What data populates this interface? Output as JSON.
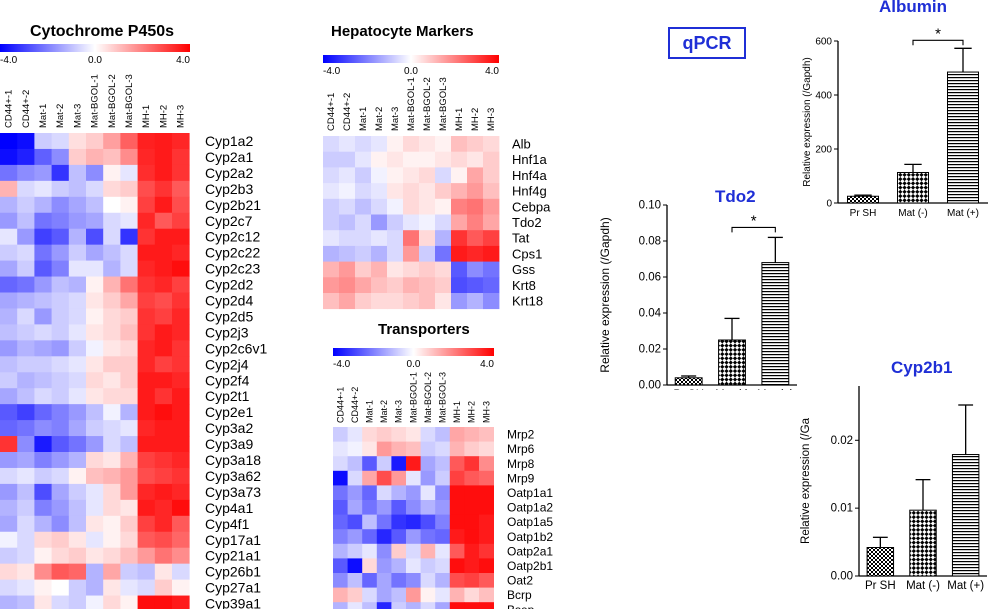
{
  "heatmap_colors": {
    "low": "#0000ff",
    "mid": "#ffffff",
    "high": "#ff0000"
  },
  "qpcr_label": "qPCR",
  "chart_data": [
    {
      "type": "heatmap",
      "title": "Cytochrome P450s",
      "scale": {
        "min": "-4.0",
        "mid": "0.0",
        "max": "4.0"
      },
      "columns": [
        "CD44+-1",
        "CD44+-2",
        "Mat-1",
        "Mat-2",
        "Mat-3",
        "Mat-BGOL-1",
        "Mat-BGOL-2",
        "Mat-BGOL-3",
        "MH-1",
        "MH-2",
        "MH-3"
      ],
      "rows": [
        "Cyp1a2",
        "Cyp2a1",
        "Cyp2a2",
        "Cyp2b3",
        "Cyp2b21",
        "Cyp2c7",
        "Cyp2c12",
        "Cyp2c22",
        "Cyp2c23",
        "Cyp2d2",
        "Cyp2d4",
        "Cyp2d5",
        "Cyp2j3",
        "Cyp2c6v1",
        "Cyp2j4",
        "Cyp2f4",
        "Cyp2t1",
        "Cyp2e1",
        "Cyp3a2",
        "Cyp3a9",
        "Cyp3a18",
        "Cyp3a62",
        "Cyp3a73",
        "Cyp4a1",
        "Cyp4f1",
        "Cyp17a1",
        "Cyp21a1",
        "Cyp26b1",
        "Cyp27a1",
        "Cyp39a1"
      ],
      "values": [
        [
          -4,
          -3.8,
          -0.8,
          -0.6,
          0.5,
          0.8,
          1.5,
          2.5,
          3.5,
          3.6,
          3.4
        ],
        [
          -3.8,
          -3.5,
          -2.5,
          -1.8,
          0.8,
          1.2,
          1.0,
          1.8,
          3.4,
          3.6,
          3.2
        ],
        [
          -2.2,
          -1.8,
          -1.6,
          -3.2,
          -1.0,
          -1.8,
          0.2,
          -0.4,
          3.3,
          3.6,
          3.2
        ],
        [
          1.2,
          -0.6,
          -0.4,
          -0.8,
          -1.0,
          -0.6,
          0.6,
          0.8,
          2.8,
          3.2,
          2.6
        ],
        [
          -1.2,
          -0.8,
          -1.2,
          -1.8,
          -1.4,
          -1.0,
          0.0,
          0.2,
          3.0,
          3.6,
          2.8
        ],
        [
          -1.6,
          -1.0,
          -2.2,
          -2.0,
          -1.6,
          -1.4,
          -0.6,
          -0.4,
          3.4,
          2.6,
          3.0
        ],
        [
          -0.4,
          -1.6,
          -3.0,
          -2.6,
          -1.2,
          -2.8,
          -0.6,
          -3.2,
          3.2,
          3.6,
          3.6
        ],
        [
          -0.8,
          -0.6,
          -2.2,
          -1.6,
          -0.8,
          -1.4,
          -1.0,
          -0.6,
          3.6,
          3.6,
          3.4
        ],
        [
          -1.4,
          -0.8,
          -2.6,
          -2.0,
          -0.4,
          -0.4,
          -1.2,
          -0.6,
          3.4,
          3.6,
          3.8
        ],
        [
          -2.4,
          -2.2,
          -1.6,
          -1.0,
          -1.2,
          0.2,
          1.2,
          2.2,
          3.2,
          3.4,
          3.0
        ],
        [
          -1.4,
          -1.2,
          -1.0,
          -0.8,
          -0.6,
          0.4,
          0.8,
          1.4,
          3.0,
          2.8,
          3.2
        ],
        [
          -1.2,
          -0.6,
          -1.6,
          -0.8,
          -0.6,
          0.2,
          0.6,
          0.8,
          3.2,
          3.0,
          3.4
        ],
        [
          -1.0,
          -0.8,
          -0.6,
          -0.8,
          -0.4,
          0.4,
          0.6,
          1.0,
          3.2,
          3.6,
          3.4
        ],
        [
          -1.6,
          -1.2,
          -1.4,
          -1.6,
          -0.8,
          -0.2,
          0.4,
          0.6,
          3.4,
          3.6,
          3.2
        ],
        [
          -1.0,
          -0.8,
          -0.8,
          -0.6,
          -0.4,
          0.4,
          0.8,
          0.8,
          3.4,
          3.0,
          3.2
        ],
        [
          -0.8,
          -1.2,
          -1.0,
          -0.8,
          -0.6,
          0.6,
          0.4,
          0.8,
          3.6,
          3.6,
          3.4
        ],
        [
          -1.4,
          -1.0,
          -0.6,
          -0.8,
          -0.4,
          0.4,
          0.6,
          0.6,
          3.6,
          3.2,
          3.6
        ],
        [
          -2.6,
          -3.0,
          -2.4,
          -2.0,
          -1.6,
          -1.0,
          -0.2,
          -1.2,
          3.6,
          3.8,
          3.6
        ],
        [
          -2.4,
          -2.2,
          -1.8,
          -2.0,
          -1.4,
          -0.8,
          -0.6,
          -0.4,
          3.4,
          3.6,
          3.6
        ],
        [
          3.2,
          -1.8,
          -3.6,
          -2.6,
          -2.2,
          -1.6,
          -0.6,
          -1.0,
          3.6,
          3.6,
          3.6
        ],
        [
          -1.6,
          -1.4,
          -2.0,
          -1.6,
          -1.2,
          0.6,
          0.4,
          1.2,
          3.0,
          3.2,
          3.4
        ],
        [
          -0.6,
          -0.4,
          -0.8,
          -0.6,
          0.2,
          1.0,
          1.2,
          1.6,
          2.8,
          3.0,
          3.2
        ],
        [
          -1.6,
          -1.0,
          -2.8,
          -1.4,
          -0.8,
          -0.4,
          0.6,
          1.6,
          3.4,
          3.6,
          3.4
        ],
        [
          -1.2,
          -0.8,
          -2.0,
          -1.6,
          -1.0,
          -0.4,
          0.6,
          0.4,
          3.6,
          3.4,
          3.8
        ],
        [
          -1.4,
          -0.6,
          -1.2,
          -1.8,
          -1.0,
          0.4,
          0.2,
          0.8,
          3.0,
          3.4,
          2.6
        ],
        [
          -0.2,
          -0.6,
          0.6,
          0.8,
          0.4,
          -0.4,
          0.2,
          0.6,
          2.6,
          2.8,
          2.4
        ],
        [
          -0.8,
          -0.6,
          0.2,
          0.6,
          0.8,
          0.4,
          0.6,
          1.0,
          1.6,
          2.2,
          1.8
        ],
        [
          0.6,
          0.4,
          1.8,
          2.6,
          2.4,
          -1.2,
          1.4,
          -0.8,
          -1.0,
          0.4,
          -0.6
        ],
        [
          -0.6,
          -0.4,
          0.2,
          0.0,
          -0.8,
          -1.2,
          0.4,
          -0.4,
          -0.6,
          0.8,
          0.2
        ],
        [
          -1.2,
          -1.0,
          0.4,
          -0.6,
          -0.8,
          -0.2,
          0.6,
          0.2,
          3.8,
          3.8,
          3.6
        ]
      ]
    },
    {
      "type": "heatmap",
      "title": "Hepatocyte Markers",
      "scale": {
        "min": "-4.0",
        "mid": "0.0",
        "max": "4.0"
      },
      "columns": [
        "CD44+-1",
        "CD44+-2",
        "Mat-1",
        "Mat-2",
        "Mat-3",
        "Mat-BGOL-1",
        "Mat-BGOL-2",
        "Mat-BGOL-3",
        "MH-1",
        "MH-2",
        "MH-3"
      ],
      "rows": [
        "Alb",
        "Hnf1a",
        "Hnf4a",
        "Hnf4g",
        "Cebpa",
        "Tdo2",
        "Tat",
        "Cps1",
        "Gss",
        "Krt8",
        "Krt18"
      ],
      "values": [
        [
          -0.6,
          -0.4,
          -0.6,
          -0.4,
          0.2,
          0.6,
          0.4,
          0.2,
          1.0,
          0.8,
          0.6
        ],
        [
          -0.8,
          -0.8,
          -0.4,
          0.2,
          0.4,
          0.2,
          0.2,
          0.4,
          0.6,
          0.4,
          0.8
        ],
        [
          -0.6,
          -0.4,
          -0.8,
          -0.2,
          0.2,
          0.4,
          0.6,
          -0.6,
          0.2,
          1.4,
          0.8
        ],
        [
          -0.4,
          -0.2,
          -0.6,
          -0.4,
          0.4,
          0.6,
          0.4,
          0.8,
          1.2,
          1.6,
          1.0
        ],
        [
          -0.8,
          -0.6,
          -1.0,
          -0.6,
          -0.2,
          0.6,
          0.4,
          0.2,
          2.0,
          2.2,
          1.6
        ],
        [
          -0.8,
          -1.0,
          -0.6,
          -1.6,
          -0.8,
          -0.4,
          -0.2,
          -0.6,
          1.4,
          2.0,
          1.4
        ],
        [
          -0.4,
          -0.6,
          -0.6,
          -0.4,
          -0.6,
          2.2,
          0.6,
          -1.2,
          3.2,
          2.6,
          3.0
        ],
        [
          -1.2,
          -1.0,
          -0.8,
          -1.2,
          -0.6,
          1.6,
          -0.8,
          -2.2,
          3.6,
          3.4,
          3.6
        ],
        [
          1.2,
          1.6,
          0.8,
          1.2,
          0.4,
          0.6,
          0.8,
          0.6,
          -2.6,
          -1.8,
          -2.2
        ],
        [
          1.6,
          1.8,
          1.4,
          1.0,
          0.8,
          1.2,
          1.0,
          0.8,
          -2.8,
          -2.6,
          -2.4
        ],
        [
          1.0,
          1.4,
          0.8,
          0.6,
          0.6,
          0.8,
          1.0,
          0.4,
          -1.6,
          -1.2,
          -1.8
        ]
      ]
    },
    {
      "type": "heatmap",
      "title": "Transporters",
      "scale": {
        "min": "-4.0",
        "mid": "0.0",
        "max": "4.0"
      },
      "columns": [
        "CD44+-1",
        "CD44+-2",
        "Mat-1",
        "Mat-2",
        "Mat-3",
        "Mat-BGOL-1",
        "Mat-BGOL-2",
        "Mat-BGOL-3",
        "MH-1",
        "MH-2",
        "MH-3"
      ],
      "rows": [
        "Mrp2",
        "Mrp6",
        "Mrp8",
        "Mrp9",
        "Oatp1a1",
        "Oatp1a2",
        "Oatp1a5",
        "Oatp1b2",
        "Oatp2a1",
        "Oatp2b1",
        "Oat2",
        "Bcrp",
        "Bsep"
      ],
      "values": [
        [
          -0.8,
          -0.4,
          0.6,
          0.8,
          0.6,
          0.4,
          -0.6,
          -1.0,
          1.4,
          1.2,
          1.0
        ],
        [
          -0.4,
          -0.2,
          0.4,
          1.6,
          1.2,
          1.0,
          -0.8,
          -0.6,
          1.2,
          0.8,
          0.6
        ],
        [
          -0.6,
          -1.0,
          -2.6,
          -0.8,
          -3.6,
          3.6,
          -1.4,
          -1.0,
          2.6,
          3.2,
          1.8
        ],
        [
          -3.8,
          -0.6,
          1.4,
          2.8,
          1.6,
          -0.4,
          -1.6,
          -0.8,
          3.0,
          2.6,
          2.4
        ],
        [
          -2.2,
          -1.6,
          -2.4,
          -0.6,
          -1.2,
          -1.6,
          -0.4,
          -1.8,
          3.8,
          3.8,
          3.8
        ],
        [
          -2.6,
          -1.4,
          -2.2,
          -1.6,
          -2.6,
          -1.8,
          -1.2,
          -1.6,
          3.8,
          3.8,
          3.8
        ],
        [
          -2.4,
          -2.8,
          -1.0,
          -2.2,
          -3.2,
          -3.4,
          -2.8,
          -2.0,
          3.8,
          3.8,
          3.6
        ],
        [
          -2.0,
          -1.6,
          -2.4,
          -3.4,
          -2.6,
          -1.6,
          -2.2,
          -2.4,
          3.6,
          3.8,
          3.6
        ],
        [
          -1.2,
          -0.8,
          -0.4,
          -1.8,
          0.8,
          -0.6,
          1.2,
          -0.4,
          2.6,
          3.6,
          3.2
        ],
        [
          -2.6,
          -3.8,
          0.6,
          -1.6,
          -1.2,
          -0.4,
          -0.8,
          -0.6,
          3.8,
          3.6,
          3.8
        ],
        [
          -1.8,
          -1.0,
          -2.4,
          -1.4,
          -2.2,
          -1.8,
          -0.6,
          -1.2,
          2.8,
          3.0,
          2.6
        ],
        [
          1.2,
          0.8,
          -0.6,
          -1.4,
          -1.0,
          1.6,
          0.2,
          -0.4,
          1.2,
          0.6,
          1.0
        ],
        [
          -1.2,
          -0.4,
          -1.0,
          -3.4,
          -0.8,
          -1.2,
          -0.6,
          -1.4,
          3.8,
          3.8,
          3.8
        ]
      ]
    },
    {
      "type": "bar",
      "title": "Albumin",
      "ylabel": "Relative expression (/Gapdh)",
      "categories": [
        "Pr SH",
        "Mat (-)",
        "Mat (+)"
      ],
      "values": [
        25,
        113,
        485
      ],
      "errors": [
        4,
        30,
        88
      ],
      "patterns": [
        "checker",
        "check-diag",
        "hlines"
      ],
      "ylim": [
        0,
        600
      ],
      "yticks": [
        "0",
        "200",
        "400",
        "600"
      ],
      "significance": "*"
    },
    {
      "type": "bar",
      "title": "Tdo2",
      "ylabel": "Relative expression (/Gapdh)",
      "categories": [
        "Pr SH",
        "Mat (-)",
        "Mat (+)"
      ],
      "values": [
        0.004,
        0.025,
        0.068
      ],
      "errors": [
        0.001,
        0.012,
        0.014
      ],
      "patterns": [
        "checker",
        "check-diag",
        "hlines"
      ],
      "ylim": [
        0,
        0.1
      ],
      "yticks": [
        "0.00",
        "0.02",
        "0.04",
        "0.06",
        "0.08",
        "0.10"
      ],
      "significance": "*"
    },
    {
      "type": "bar",
      "title": "Cyp2b1",
      "ylabel": "Relative expression (/Ga",
      "categories": [
        "Pr SH",
        "Mat (-)",
        "Mat (+)"
      ],
      "values": [
        0.0042,
        0.0097,
        0.0179
      ],
      "errors": [
        0.0015,
        0.0045,
        0.0073
      ],
      "patterns": [
        "checker",
        "check-diag",
        "hlines"
      ],
      "ylim": [
        0,
        0.028
      ],
      "yticks": [
        "0.00",
        "0.01",
        "0.02"
      ]
    }
  ]
}
